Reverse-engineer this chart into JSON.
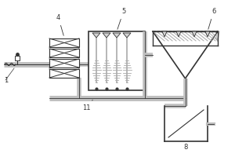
{
  "bg_color": "#ffffff",
  "line_color": "#aaaaaa",
  "dark_color": "#333333",
  "label_4": "4",
  "label_5": "5",
  "label_6": "6",
  "label_8": "8",
  "label_11": "11",
  "label_1": "1",
  "pipe_color": "#c0c0c0",
  "pipe_dark": "#555555"
}
